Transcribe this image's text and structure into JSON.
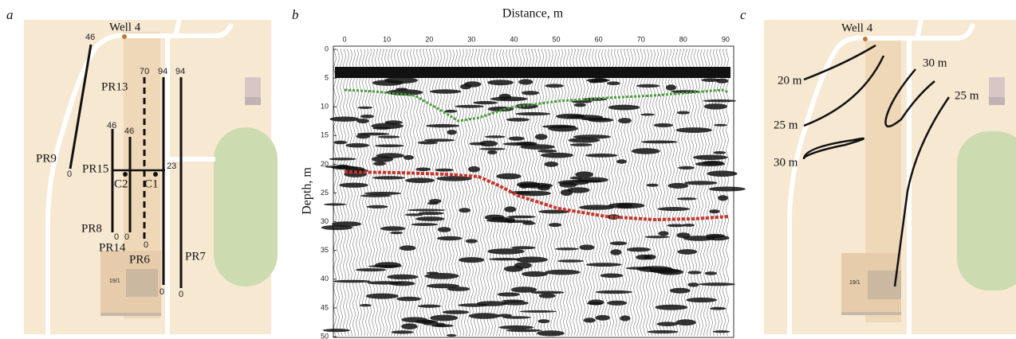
{
  "panel_a": {
    "label": "a",
    "labels": [
      "Well 4",
      "46",
      "70",
      "94",
      "94",
      "PR13",
      "46",
      "46",
      "PR9",
      "0",
      "PR15",
      "23",
      "C2",
      "C1",
      "PR8",
      "0",
      "0",
      "0",
      "PR14",
      "PR6",
      "PR7",
      "0",
      "0",
      "19/1"
    ]
  },
  "panel_b": {
    "label": "b",
    "title": "Distance, m",
    "ylabel": "Depth, m",
    "xticks": [
      "0",
      "10",
      "20",
      "30",
      "40",
      "50",
      "60",
      "70",
      "80",
      "90"
    ],
    "yticks": [
      "0",
      "5",
      "10",
      "15",
      "20",
      "25",
      "30",
      "35",
      "40",
      "45",
      "50"
    ]
  },
  "panel_c": {
    "label": "c",
    "labels": [
      "Well 4",
      "20 m",
      "30 m",
      "25 m",
      "25 m",
      "30 m",
      "19/1"
    ]
  }
}
